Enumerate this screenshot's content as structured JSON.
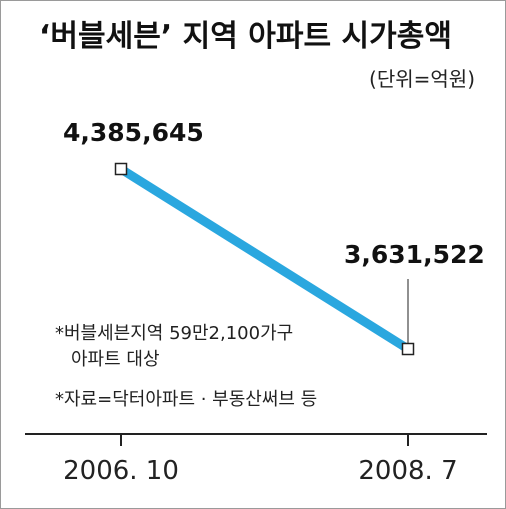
{
  "title": "‘버블세븐’ 지역 아파트 시가총액",
  "unit_label": "(단위=억원)",
  "notes": {
    "line1": "*버블세븐지역 59만2,100가구",
    "line2": "아파트 대상",
    "source": "*자료=닥터아파트 · 부동산써브 등"
  },
  "colors": {
    "line": "#2aa7df",
    "axis": "#222222"
  },
  "chart_data": {
    "type": "line",
    "title": "‘버블세븐’ 지역 아파트 시가총액",
    "xlabel": "",
    "ylabel": "",
    "unit": "억원",
    "categories": [
      "2006. 10",
      "2008. 7"
    ],
    "values": [
      4385645,
      3631522
    ],
    "value_labels": [
      "4,385,645",
      "3,631,522"
    ],
    "ylim": [
      3500000,
      4450000
    ],
    "grid": false,
    "legend": "none"
  }
}
